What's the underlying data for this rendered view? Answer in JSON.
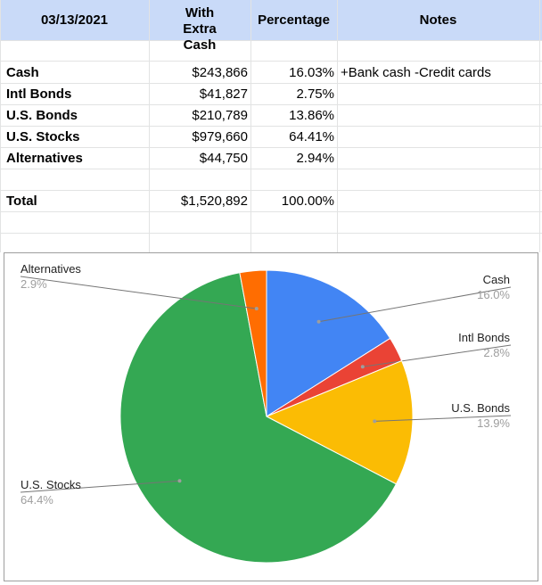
{
  "sheet": {
    "headers": {
      "date": "03/13/2021",
      "with_extra_cash": "With Extra Cash",
      "percentage": "Percentage",
      "notes": "Notes"
    },
    "rows": [
      {
        "label": "Cash",
        "amount": "$243,866",
        "percent": "16.03%",
        "note": "+Bank cash -Credit cards"
      },
      {
        "label": "Intl Bonds",
        "amount": "$41,827",
        "percent": "2.75%",
        "note": ""
      },
      {
        "label": "U.S. Bonds",
        "amount": "$210,789",
        "percent": "13.86%",
        "note": ""
      },
      {
        "label": "U.S. Stocks",
        "amount": "$979,660",
        "percent": "64.41%",
        "note": ""
      },
      {
        "label": "Alternatives",
        "amount": "$44,750",
        "percent": "2.94%",
        "note": ""
      }
    ],
    "total": {
      "label": "Total",
      "amount": "$1,520,892",
      "percent": "100.00%"
    }
  },
  "chart_data": {
    "type": "pie",
    "title": "",
    "start_angle_deg": 0,
    "slices": [
      {
        "label": "Cash",
        "value": 16.03,
        "pct_label": "16.0%",
        "color": "#4285f4"
      },
      {
        "label": "Intl Bonds",
        "value": 2.75,
        "pct_label": "2.8%",
        "color": "#ea4335"
      },
      {
        "label": "U.S. Bonds",
        "value": 13.86,
        "pct_label": "13.9%",
        "color": "#fbbc04"
      },
      {
        "label": "U.S. Stocks",
        "value": 64.41,
        "pct_label": "64.4%",
        "color": "#34a853"
      },
      {
        "label": "Alternatives",
        "value": 2.94,
        "pct_label": "2.9%",
        "color": "#ff6d01"
      }
    ],
    "label_text_color": "#222222",
    "pct_text_color": "#9e9e9e",
    "leader_color": "#757575"
  }
}
